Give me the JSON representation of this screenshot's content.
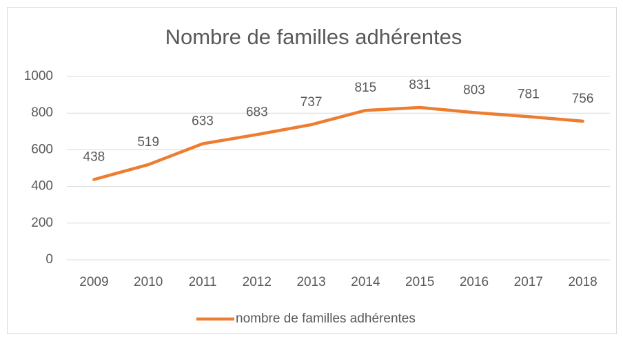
{
  "chart_data": {
    "type": "line",
    "title": "Nombre de familles adhérentes",
    "categories": [
      "2009",
      "2010",
      "2011",
      "2012",
      "2013",
      "2014",
      "2015",
      "2016",
      "2017",
      "2018"
    ],
    "series": [
      {
        "name": "nombre de familles adhérentes",
        "color": "#ed7d31",
        "values": [
          438,
          519,
          633,
          683,
          737,
          815,
          831,
          803,
          781,
          756
        ]
      }
    ],
    "ylim": [
      0,
      1000
    ],
    "yticks": [
      0,
      200,
      400,
      600,
      800,
      1000
    ],
    "grid": true,
    "legend": "bottom"
  }
}
